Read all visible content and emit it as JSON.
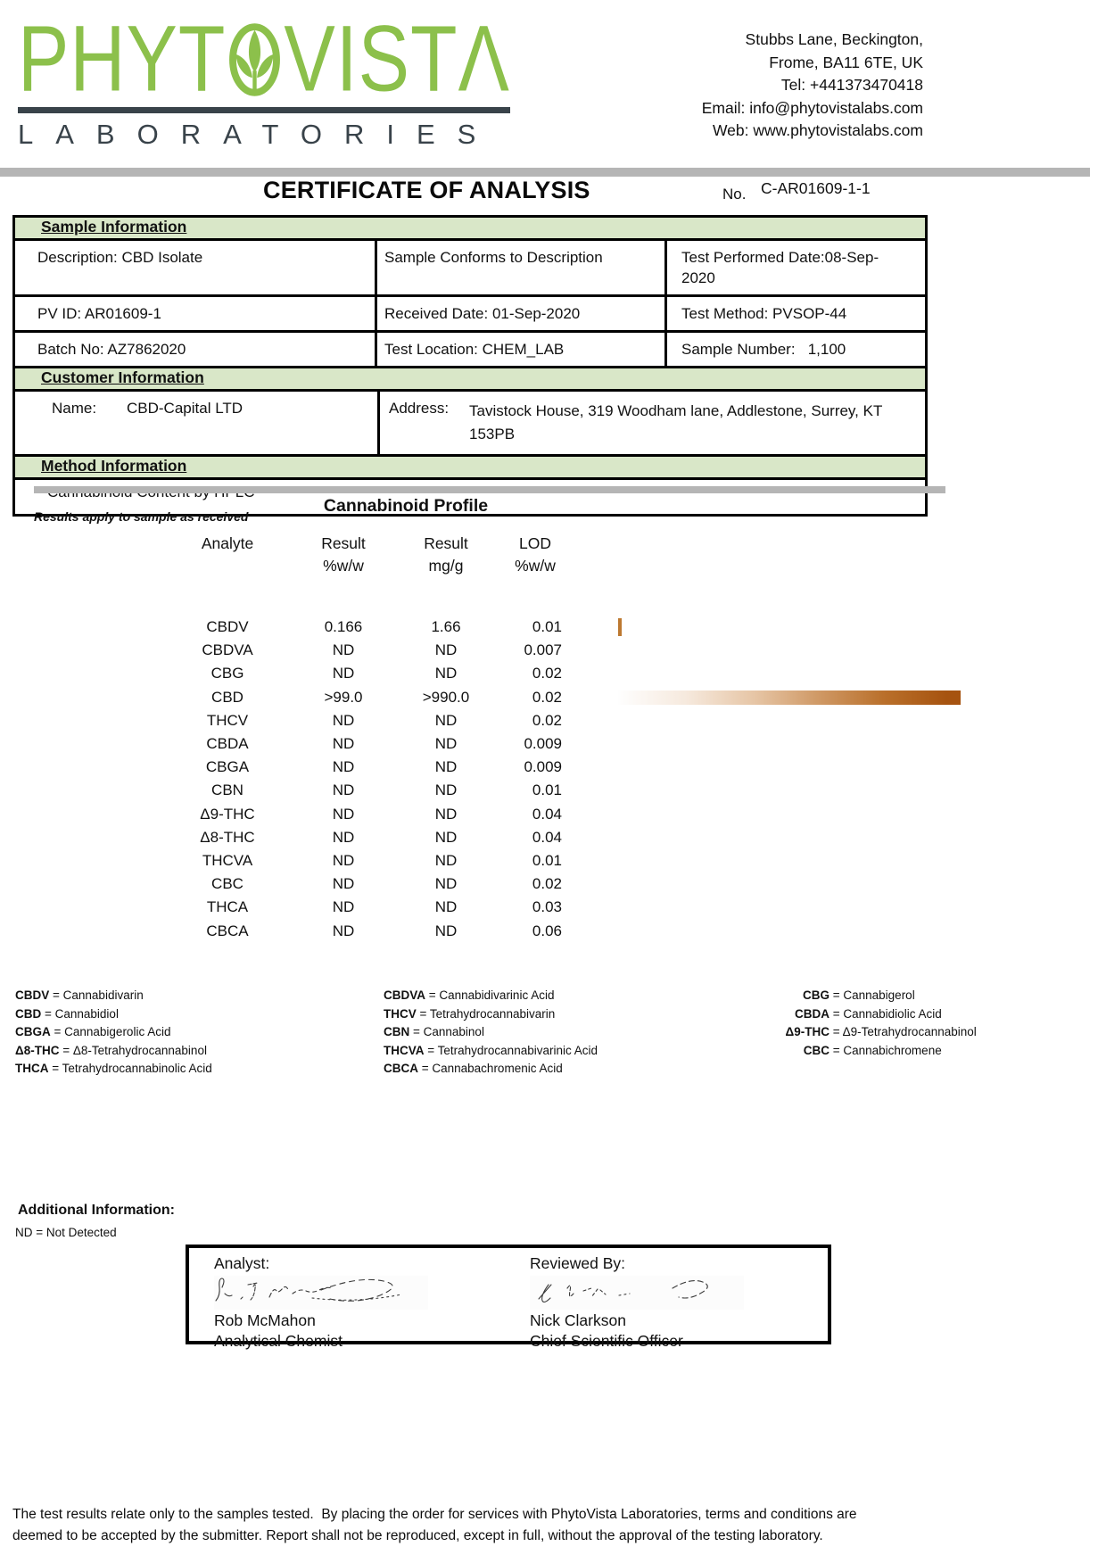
{
  "header": {
    "logo": {
      "word_part1": "PHYT",
      "word_part2": "VIST",
      "word_part3": "Λ",
      "subtitle": "LABORATORIES"
    },
    "contact_lines": [
      "Stubbs Lane, Beckington,",
      "Frome, BA11 6TE, UK",
      "Tel: +441373470418",
      "Email: info@phytovistalabs.com",
      "Web: www.phytovistalabs.com"
    ]
  },
  "title": {
    "text": "CERTIFICATE OF ANALYSIS",
    "no_label": "No.",
    "number": "C-AR01609-1-1"
  },
  "sample_info": {
    "section_title": "Sample Information",
    "rows": [
      [
        "Description: CBD Isolate",
        "Sample Conforms to Description",
        "Test Performed Date:08-Sep-\n2020"
      ],
      [
        "PV ID: AR01609-1",
        "Received Date: 01-Sep-2020",
        "Test Method: PVSOP-44"
      ],
      [
        "Batch No: AZ7862020",
        "Test Location: CHEM_LAB",
        "Sample Number:   1,100"
      ]
    ]
  },
  "customer_info": {
    "section_title": "Customer Information",
    "name_label": "Name:",
    "name": "CBD-Capital LTD",
    "address_label": "Address:",
    "address": "Tavistock House, 319 Woodham lane, Addlestone, Surrey, KT\n153PB"
  },
  "method_info": {
    "section_title": "Method Information",
    "method": "Cannabinoid Content by HPLC"
  },
  "profile": {
    "note": "Results apply to sample as received",
    "title": "Cannabinoid Profile",
    "headers": [
      [
        "Analyte",
        ""
      ],
      [
        "Result",
        "%w/w"
      ],
      [
        "Result",
        "mg/g"
      ],
      [
        "LOD",
        "%w/w"
      ]
    ],
    "rows": [
      {
        "analyte": "CBDV",
        "pct": "0.166",
        "mgg": "1.66",
        "lod": "0.01",
        "bar": "tick"
      },
      {
        "analyte": "CBDVA",
        "pct": "ND",
        "mgg": "ND",
        "lod": "0.007",
        "bar": ""
      },
      {
        "analyte": "CBG",
        "pct": "ND",
        "mgg": "ND",
        "lod": "0.02",
        "bar": ""
      },
      {
        "analyte": "CBD",
        "pct": ">99.0",
        "mgg": ">990.0",
        "lod": "0.02",
        "bar": "gradient"
      },
      {
        "analyte": "THCV",
        "pct": "ND",
        "mgg": "ND",
        "lod": "0.02",
        "bar": ""
      },
      {
        "analyte": "CBDA",
        "pct": "ND",
        "mgg": "ND",
        "lod": "0.009",
        "bar": ""
      },
      {
        "analyte": "CBGA",
        "pct": "ND",
        "mgg": "ND",
        "lod": "0.009",
        "bar": ""
      },
      {
        "analyte": "CBN",
        "pct": "ND",
        "mgg": "ND",
        "lod": "0.01",
        "bar": ""
      },
      {
        "analyte": "Δ9-THC",
        "pct": "ND",
        "mgg": "ND",
        "lod": "0.04",
        "bar": ""
      },
      {
        "analyte": "Δ8-THC",
        "pct": "ND",
        "mgg": "ND",
        "lod": "0.04",
        "bar": ""
      },
      {
        "analyte": "THCVA",
        "pct": "ND",
        "mgg": "ND",
        "lod": "0.01",
        "bar": ""
      },
      {
        "analyte": "CBC",
        "pct": "ND",
        "mgg": "ND",
        "lod": "0.02",
        "bar": ""
      },
      {
        "analyte": "THCA",
        "pct": "ND",
        "mgg": "ND",
        "lod": "0.03",
        "bar": ""
      },
      {
        "analyte": "CBCA",
        "pct": "ND",
        "mgg": "ND",
        "lod": "0.06",
        "bar": ""
      }
    ]
  },
  "legend": {
    "columns": [
      [
        {
          "abbr": "CBDV",
          "rest": " = Cannabidivarin"
        },
        {
          "abbr": "CBD",
          "rest": " = Cannabidiol"
        },
        {
          "abbr": "CBGA",
          "rest": " = Cannabigerolic Acid"
        },
        {
          "abbr": "Δ8-THC",
          "rest": " = Δ8-Tetrahydrocannabinol"
        },
        {
          "abbr": "THCA",
          "rest": " = Tetrahydrocannabinolic Acid"
        }
      ],
      [
        {
          "abbr": "CBDVA",
          "rest": " = Cannabidivarinic Acid"
        },
        {
          "abbr": "THCV",
          "rest": " = Tetrahydrocannabivarin"
        },
        {
          "abbr": "CBN",
          "rest": " = Cannabinol"
        },
        {
          "abbr": "THCVA",
          "rest": " = Tetrahydrocannabivarinic Acid"
        },
        {
          "abbr": "CBCA",
          "rest": " = Cannabachromenic Acid"
        }
      ],
      [
        {
          "abbr": "CBG",
          "rest": " = Cannabigerol"
        },
        {
          "abbr": "CBDA",
          "rest": " = Cannabidiolic Acid"
        },
        {
          "abbr": "Δ9-THC",
          "rest": " = Δ9-Tetrahydrocannabinol"
        },
        {
          "abbr": "CBC",
          "rest": " = Cannabichromene"
        }
      ]
    ]
  },
  "additional": {
    "title": "Additional Information:",
    "nd_note": "ND = Not Detected"
  },
  "signoff": {
    "analyst_label": "Analyst:",
    "analyst_name": "Rob McMahon",
    "analyst_title": "Analytical Chemist",
    "reviewer_label": "Reviewed By:",
    "reviewer_name": "Nick Clarkson",
    "reviewer_title": "Chief Scientific Officer"
  },
  "footer": "The test results relate only to the samples tested.  By placing the order for services with PhytoVista Laboratories, terms and conditions are\ndeemed to be accepted by the submitter. Report shall not be reproduced, except in full, without the approval of the testing laboratory.",
  "colors": {
    "logo_green": "#8cc04b",
    "dark_slate": "#39434a",
    "section_header_green": "#d9e7c8",
    "divider_gray": "#b5b5b5",
    "cbd_bar_orange": "#a65310"
  }
}
